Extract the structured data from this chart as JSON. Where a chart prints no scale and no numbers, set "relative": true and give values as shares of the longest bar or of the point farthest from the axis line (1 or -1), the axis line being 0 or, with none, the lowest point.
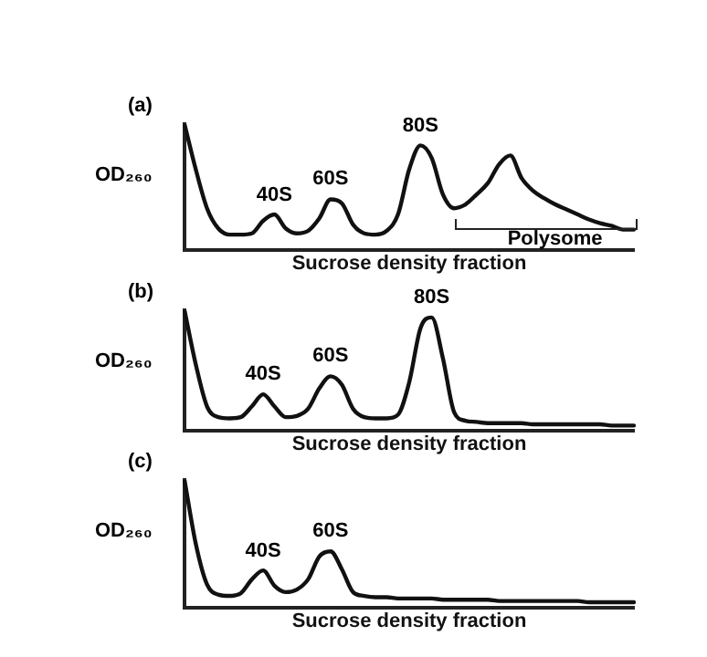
{
  "chart_data": [
    {
      "type": "line",
      "title": "(a)",
      "ylabel": "OD₂₆₀",
      "xlabel": "Sucrose density fraction",
      "relative": true,
      "tick_labels": false,
      "grid": false,
      "marker": "none",
      "categories": [
        null,
        null,
        null,
        null,
        null,
        null,
        null,
        null,
        null,
        null,
        null,
        null,
        null,
        null,
        null,
        null,
        null,
        null,
        null,
        null,
        null,
        null,
        null,
        null,
        null,
        null,
        null,
        null,
        null,
        null,
        null,
        null,
        null,
        null,
        null,
        null,
        null,
        null,
        null,
        null,
        null
      ],
      "series": [
        {
          "color": "#111111",
          "values": [
            1.0,
            0.64,
            0.33,
            0.17,
            0.12,
            0.12,
            0.13,
            0.23,
            0.28,
            0.17,
            0.13,
            0.15,
            0.25,
            0.4,
            0.37,
            0.2,
            0.13,
            0.12,
            0.15,
            0.28,
            0.64,
            0.83,
            0.73,
            0.44,
            0.33,
            0.36,
            0.44,
            0.53,
            0.68,
            0.75,
            0.57,
            0.47,
            0.41,
            0.36,
            0.32,
            0.28,
            0.24,
            0.21,
            0.19,
            0.16,
            0.16
          ]
        }
      ],
      "annotations": [
        "40S",
        "60S",
        "80S",
        "Polysome"
      ]
    },
    {
      "type": "line",
      "title": "(b)",
      "ylabel": "OD₂₆₀",
      "xlabel": "Sucrose density fraction",
      "relative": true,
      "tick_labels": false,
      "grid": false,
      "marker": "none",
      "categories": [
        null,
        null,
        null,
        null,
        null,
        null,
        null,
        null,
        null,
        null,
        null,
        null,
        null,
        null,
        null,
        null,
        null,
        null,
        null,
        null,
        null,
        null,
        null,
        null,
        null,
        null,
        null,
        null,
        null,
        null,
        null,
        null,
        null,
        null,
        null,
        null,
        null,
        null,
        null,
        null,
        null
      ],
      "series": [
        {
          "color": "#111111",
          "values": [
            1.0,
            0.55,
            0.2,
            0.11,
            0.1,
            0.11,
            0.2,
            0.3,
            0.2,
            0.11,
            0.12,
            0.18,
            0.35,
            0.45,
            0.38,
            0.18,
            0.11,
            0.1,
            0.1,
            0.13,
            0.4,
            0.85,
            0.94,
            0.6,
            0.15,
            0.08,
            0.07,
            0.06,
            0.06,
            0.06,
            0.06,
            0.05,
            0.05,
            0.05,
            0.05,
            0.05,
            0.05,
            0.05,
            0.04,
            0.04,
            0.04
          ]
        }
      ],
      "annotations": [
        "40S",
        "60S",
        "80S"
      ]
    },
    {
      "type": "line",
      "title": "(c)",
      "ylabel": "OD₂₆₀",
      "xlabel": "Sucrose density fraction",
      "relative": true,
      "tick_labels": false,
      "grid": false,
      "marker": "none",
      "categories": [
        null,
        null,
        null,
        null,
        null,
        null,
        null,
        null,
        null,
        null,
        null,
        null,
        null,
        null,
        null,
        null,
        null,
        null,
        null,
        null,
        null,
        null,
        null,
        null,
        null,
        null,
        null,
        null,
        null,
        null,
        null,
        null,
        null,
        null,
        null,
        null,
        null,
        null,
        null,
        null,
        null
      ],
      "series": [
        {
          "color": "#111111",
          "values": [
            1.0,
            0.5,
            0.18,
            0.1,
            0.09,
            0.11,
            0.22,
            0.29,
            0.17,
            0.12,
            0.14,
            0.22,
            0.4,
            0.44,
            0.3,
            0.12,
            0.09,
            0.08,
            0.08,
            0.07,
            0.07,
            0.07,
            0.07,
            0.06,
            0.06,
            0.06,
            0.06,
            0.06,
            0.05,
            0.05,
            0.05,
            0.05,
            0.05,
            0.05,
            0.05,
            0.05,
            0.04,
            0.04,
            0.04,
            0.04,
            0.04
          ]
        }
      ],
      "annotations": [
        "40S",
        "60S"
      ]
    }
  ]
}
